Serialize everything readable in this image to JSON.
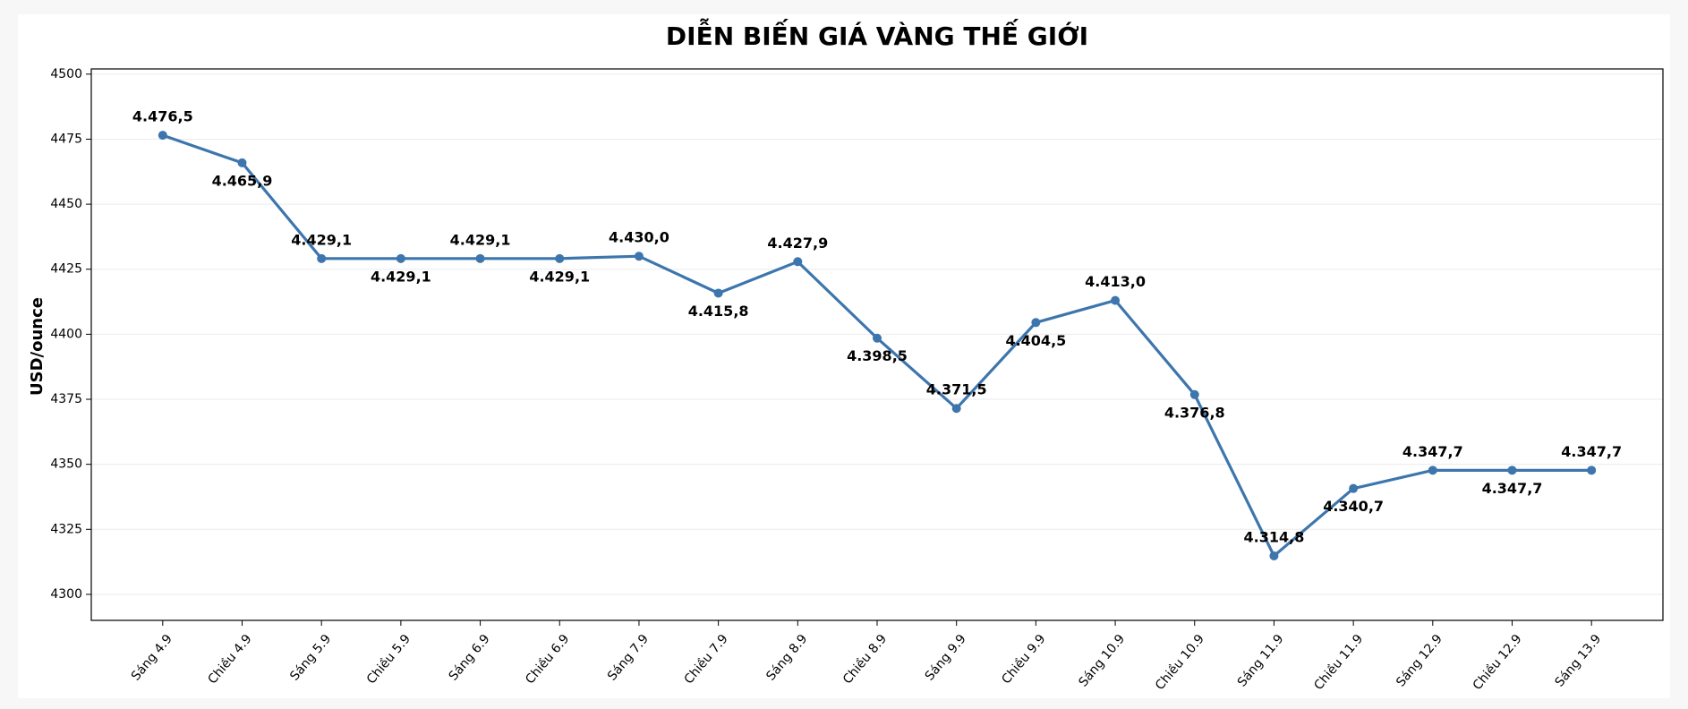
{
  "chart_data": {
    "type": "line",
    "title": "DIỄN BIẾN GIÁ VÀNG THẾ GIỚI",
    "y_label": "USD/ounce",
    "categories": [
      "Sáng 4.9",
      "Chiều 4.9",
      "Sáng 5.9",
      "Chiều 5.9",
      "Sáng 6.9",
      "Chiều 6.9",
      "Sáng 7.9",
      "Chiều 7.9",
      "Sáng 8.9",
      "Chiều 8.9",
      "Sáng 9.9",
      "Chiều 9.9",
      "Sáng 10.9",
      "Chiều 10.9",
      "Sáng 11.9",
      "Chiều 11.9",
      "Sáng 12.9",
      "Chiều 12.9",
      "Sáng 13.9"
    ],
    "values": [
      4476.5,
      4465.9,
      4429.1,
      4429.1,
      4429.1,
      4429.1,
      4430.0,
      4415.8,
      4427.9,
      4398.5,
      4371.5,
      4404.5,
      4413.0,
      4376.8,
      4314.8,
      4340.7,
      4347.7,
      4347.7,
      4347.7
    ],
    "value_labels": [
      "4.476,5",
      "4.465,9",
      "4.429,1",
      "4.429,1",
      "4.429,1",
      "4.429,1",
      "4.430,0",
      "4.415,8",
      "4.427,9",
      "4.398,5",
      "4.371,5",
      "4.404,5",
      "4.413,0",
      "4.376,8",
      "4.314,8",
      "4.340,7",
      "4.347,7",
      "4.347,7",
      "4.347,7"
    ],
    "color": "#3d75ad",
    "ylim": [
      4290,
      4502
    ],
    "yticks": [
      4300,
      4325,
      4350,
      4375,
      4400,
      4425,
      4450,
      4475,
      4500
    ],
    "grid": true
  }
}
